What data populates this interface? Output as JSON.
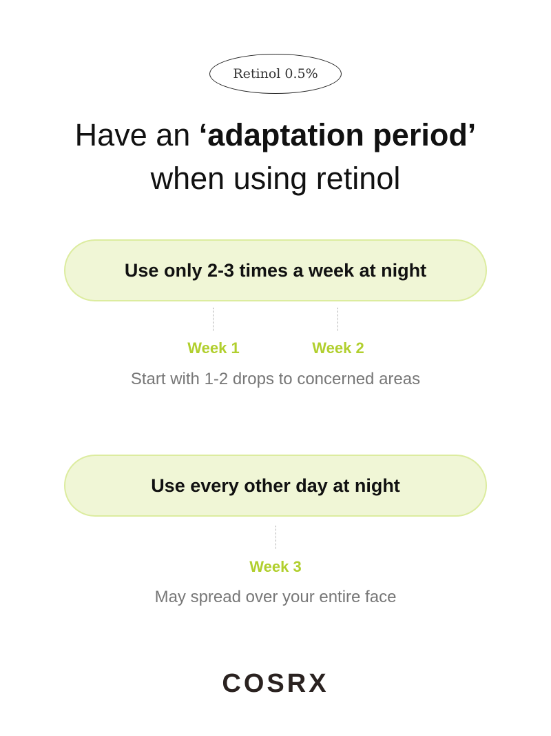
{
  "badge": "Retinol 0.5%",
  "headline": {
    "line1_pre": "Have an ",
    "line1_bold": "‘adaptation period’",
    "line2": "when using retinol"
  },
  "steps": [
    {
      "pill": "Use only 2-3 times a week at night",
      "weeks": [
        "Week 1",
        "Week 2"
      ],
      "desc": "Start with 1-2 drops to concerned areas"
    },
    {
      "pill": "Use every other day at night",
      "weeks": [
        "Week 3"
      ],
      "desc": "May spread over your entire face"
    }
  ],
  "brand": "COSRX",
  "colors": {
    "accent": "#b1cf2e",
    "pill_bg": "#f0f6d6",
    "pill_border": "#dcec9f"
  }
}
